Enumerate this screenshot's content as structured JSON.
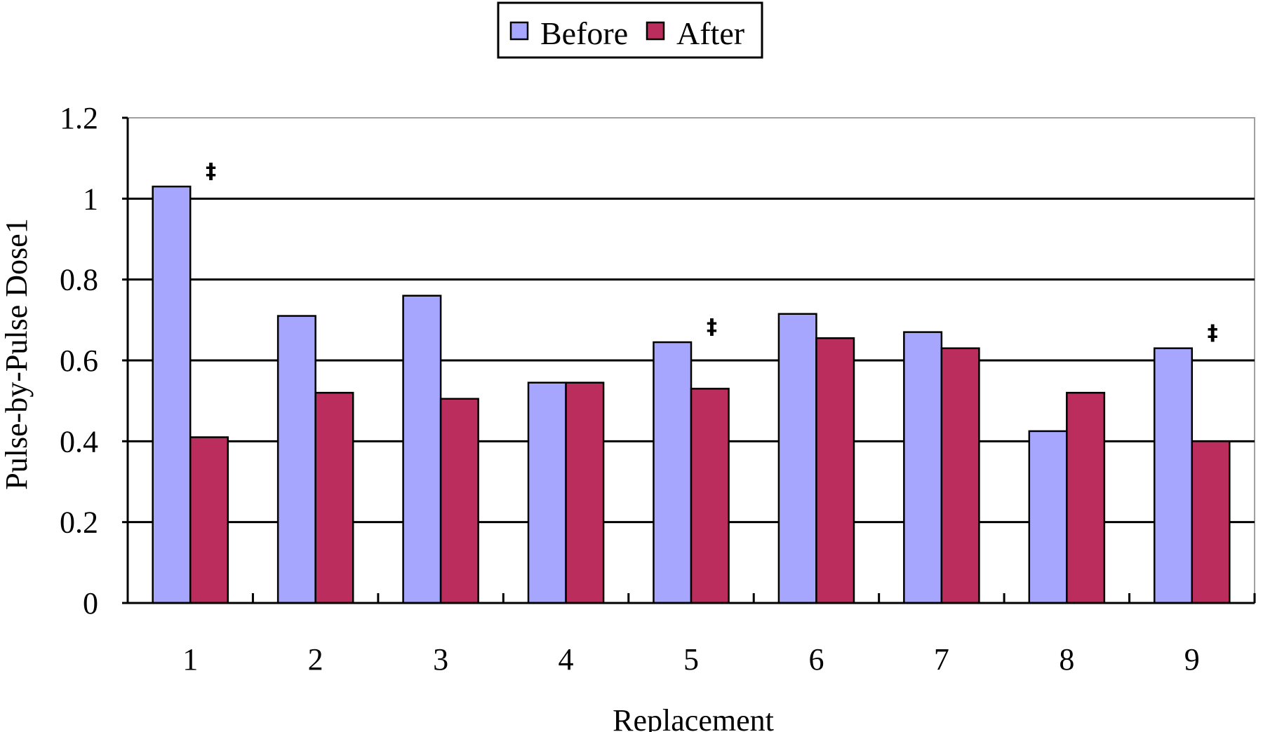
{
  "chart_data": {
    "type": "bar",
    "categories": [
      "1",
      "2",
      "3",
      "4",
      "5",
      "6",
      "7",
      "8",
      "9"
    ],
    "series": [
      {
        "name": "Before",
        "color": "#a6a6ff",
        "values": [
          1.03,
          0.71,
          0.76,
          0.545,
          0.645,
          0.715,
          0.67,
          0.425,
          0.63
        ]
      },
      {
        "name": "After",
        "color": "#bb2d5d",
        "values": [
          0.41,
          0.52,
          0.505,
          0.545,
          0.53,
          0.655,
          0.63,
          0.52,
          0.4
        ]
      }
    ],
    "annotations": [
      {
        "category": "1",
        "text": "‡"
      },
      {
        "category": "5",
        "text": "‡"
      },
      {
        "category": "9",
        "text": "‡"
      }
    ],
    "title": "",
    "xlabel": "Replacement",
    "ylabel": "Pulse-by-Pulse Dose1",
    "ylim": [
      0,
      1.2
    ],
    "yticks": [
      "0",
      "0.2",
      "0.4",
      "0.6",
      "0.8",
      "1",
      "1.2"
    ],
    "grid": true,
    "legend_position": "top-center"
  }
}
